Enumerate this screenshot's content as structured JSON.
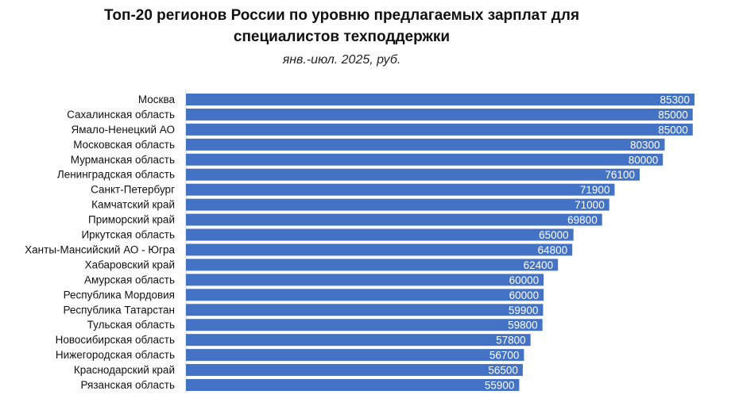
{
  "chart_data": {
    "type": "bar",
    "orientation": "horizontal",
    "title_lines": [
      "Топ-20 регионов России по уровню предлагаемых зарплат для",
      "специалистов техподдержки"
    ],
    "subtitle": "янв.-июл. 2025, руб.",
    "bar_color": "#4472C4",
    "label_color": "#ffffff",
    "categories": [
      "Москва",
      "Сахалинская область",
      "Ямало-Ненецкий АО",
      "Московская область",
      "Мурманская область",
      "Ленинградская область",
      "Санкт-Петербург",
      "Камчатский край",
      "Приморский край",
      "Иркутская область",
      "Ханты-Мансийский АО - Югра",
      "Хабаровский край",
      "Амурская область",
      "Республика Мордовия",
      "Республика Татарстан",
      "Тульская область",
      "Новосибирская область",
      "Нижегородская область",
      "Краснодарский край",
      "Рязанская область"
    ],
    "values": [
      85300,
      85000,
      85000,
      80300,
      80000,
      76100,
      71900,
      71000,
      69800,
      65000,
      64800,
      62400,
      60000,
      60000,
      59900,
      59800,
      57800,
      56700,
      56500,
      55900
    ],
    "xlim": [
      0,
      85300
    ],
    "grid": false,
    "legend": "none"
  }
}
